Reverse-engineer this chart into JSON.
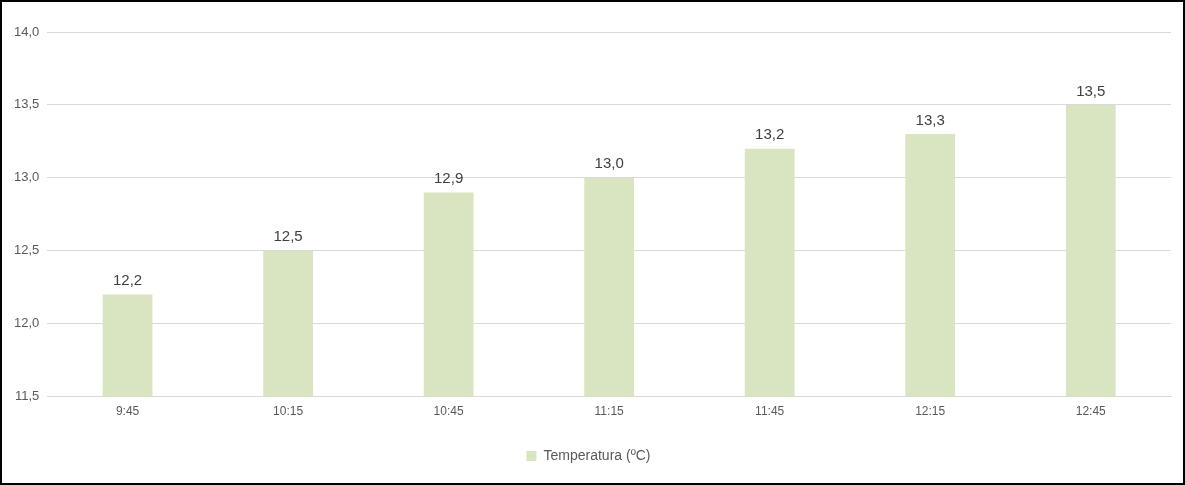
{
  "chart_data": {
    "type": "bar",
    "categories": [
      "9:45",
      "10:15",
      "10:45",
      "11:15",
      "11:45",
      "12:15",
      "12:45"
    ],
    "series": [
      {
        "name": "Temperatura (ºC)",
        "color": "#d9e4c1",
        "values": [
          12.2,
          12.5,
          12.9,
          13.0,
          13.2,
          13.3,
          13.5
        ],
        "value_labels": [
          "12,2",
          "12,5",
          "12,9",
          "13,0",
          "13,2",
          "13,3",
          "13,5"
        ]
      }
    ],
    "ylim": [
      11.5,
      14.0
    ],
    "yticks": [
      {
        "value": 11.5,
        "label": "11,5"
      },
      {
        "value": 12.0,
        "label": "12,0"
      },
      {
        "value": 12.5,
        "label": "12,5"
      },
      {
        "value": 13.0,
        "label": "13,0"
      },
      {
        "value": 13.5,
        "label": "13,5"
      },
      {
        "value": 14.0,
        "label": "14,0"
      }
    ],
    "grid": "y",
    "legend": "bottom"
  }
}
